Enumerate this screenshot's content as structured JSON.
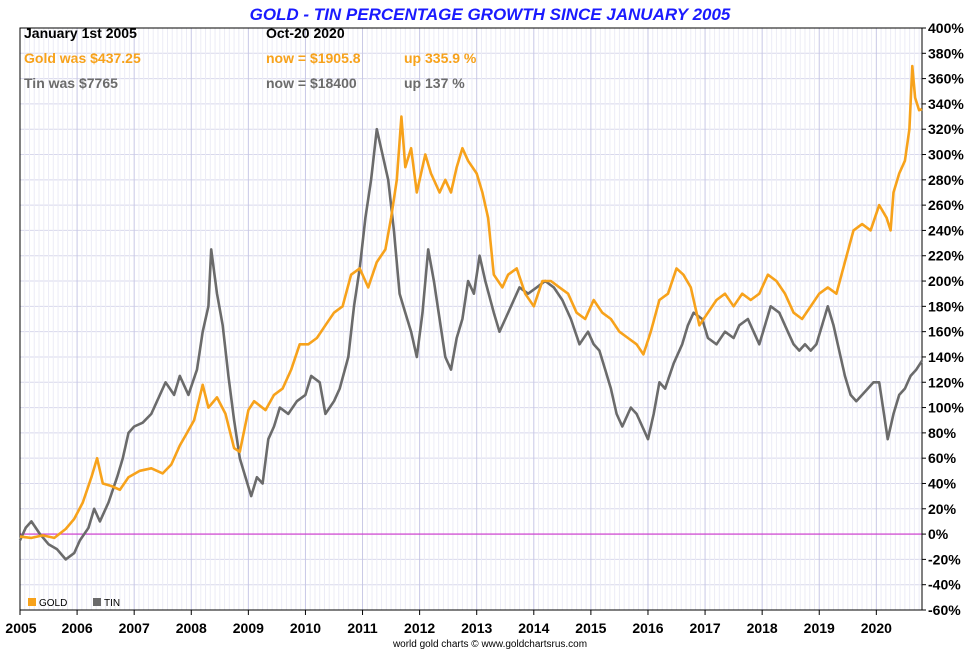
{
  "chart_data": {
    "type": "line",
    "title": "GOLD - TIN PERCENTAGE GROWTH SINCE JANUARY 2005",
    "header": {
      "start_label": "January 1st 2005",
      "end_label": "Oct-20  2020",
      "gold_was": "Gold was $437.25",
      "gold_now": "now = $1905.8",
      "gold_up": "up 335.9 %",
      "tin_was": "Tin was $7765",
      "tin_now": "now = $18400",
      "tin_up": "up 137 %"
    },
    "ylim": [
      -60,
      400
    ],
    "yticks": [
      "400%",
      "380%",
      "360%",
      "340%",
      "320%",
      "300%",
      "280%",
      "260%",
      "240%",
      "220%",
      "200%",
      "180%",
      "160%",
      "140%",
      "120%",
      "100%",
      "80%",
      "60%",
      "40%",
      "20%",
      "0%",
      "-20%",
      "-40%",
      "-60%"
    ],
    "xlim": [
      2005,
      2020.8
    ],
    "xticks": [
      "2005",
      "2006",
      "2007",
      "2008",
      "2009",
      "2010",
      "2011",
      "2012",
      "2013",
      "2014",
      "2015",
      "2016",
      "2017",
      "2018",
      "2019",
      "2020"
    ],
    "grid": true,
    "zero_line": true,
    "legend_placement": "bottom-left",
    "series": [
      {
        "name": "GOLD",
        "color": "#f7a21b",
        "points": [
          [
            2005.0,
            -2
          ],
          [
            2005.2,
            -3
          ],
          [
            2005.4,
            -1
          ],
          [
            2005.6,
            -3
          ],
          [
            2005.8,
            4
          ],
          [
            2005.95,
            12
          ],
          [
            2006.1,
            25
          ],
          [
            2006.25,
            45
          ],
          [
            2006.35,
            60
          ],
          [
            2006.45,
            40
          ],
          [
            2006.6,
            38
          ],
          [
            2006.75,
            35
          ],
          [
            2006.9,
            45
          ],
          [
            2007.1,
            50
          ],
          [
            2007.3,
            52
          ],
          [
            2007.5,
            48
          ],
          [
            2007.65,
            55
          ],
          [
            2007.8,
            70
          ],
          [
            2007.9,
            78
          ],
          [
            2008.05,
            90
          ],
          [
            2008.2,
            118
          ],
          [
            2008.3,
            100
          ],
          [
            2008.45,
            108
          ],
          [
            2008.6,
            95
          ],
          [
            2008.75,
            68
          ],
          [
            2008.85,
            65
          ],
          [
            2009.0,
            98
          ],
          [
            2009.1,
            105
          ],
          [
            2009.3,
            98
          ],
          [
            2009.45,
            110
          ],
          [
            2009.6,
            115
          ],
          [
            2009.75,
            130
          ],
          [
            2009.9,
            150
          ],
          [
            2010.05,
            150
          ],
          [
            2010.2,
            155
          ],
          [
            2010.35,
            165
          ],
          [
            2010.5,
            175
          ],
          [
            2010.65,
            180
          ],
          [
            2010.8,
            205
          ],
          [
            2010.95,
            210
          ],
          [
            2011.1,
            195
          ],
          [
            2011.25,
            215
          ],
          [
            2011.4,
            225
          ],
          [
            2011.5,
            250
          ],
          [
            2011.6,
            280
          ],
          [
            2011.68,
            330
          ],
          [
            2011.75,
            290
          ],
          [
            2011.85,
            305
          ],
          [
            2011.95,
            270
          ],
          [
            2012.1,
            300
          ],
          [
            2012.2,
            285
          ],
          [
            2012.35,
            270
          ],
          [
            2012.45,
            280
          ],
          [
            2012.55,
            270
          ],
          [
            2012.65,
            290
          ],
          [
            2012.75,
            305
          ],
          [
            2012.85,
            295
          ],
          [
            2013.0,
            285
          ],
          [
            2013.1,
            270
          ],
          [
            2013.2,
            250
          ],
          [
            2013.3,
            205
          ],
          [
            2013.45,
            195
          ],
          [
            2013.55,
            205
          ],
          [
            2013.7,
            210
          ],
          [
            2013.85,
            190
          ],
          [
            2014.0,
            180
          ],
          [
            2014.15,
            200
          ],
          [
            2014.3,
            200
          ],
          [
            2014.45,
            195
          ],
          [
            2014.6,
            190
          ],
          [
            2014.75,
            175
          ],
          [
            2014.9,
            170
          ],
          [
            2015.05,
            185
          ],
          [
            2015.2,
            175
          ],
          [
            2015.35,
            170
          ],
          [
            2015.5,
            160
          ],
          [
            2015.65,
            155
          ],
          [
            2015.8,
            150
          ],
          [
            2015.92,
            142
          ],
          [
            2016.05,
            160
          ],
          [
            2016.2,
            185
          ],
          [
            2016.35,
            190
          ],
          [
            2016.5,
            210
          ],
          [
            2016.62,
            205
          ],
          [
            2016.75,
            195
          ],
          [
            2016.9,
            165
          ],
          [
            2017.05,
            175
          ],
          [
            2017.2,
            185
          ],
          [
            2017.35,
            190
          ],
          [
            2017.5,
            180
          ],
          [
            2017.65,
            190
          ],
          [
            2017.8,
            185
          ],
          [
            2017.95,
            190
          ],
          [
            2018.1,
            205
          ],
          [
            2018.25,
            200
          ],
          [
            2018.4,
            190
          ],
          [
            2018.55,
            175
          ],
          [
            2018.7,
            170
          ],
          [
            2018.85,
            180
          ],
          [
            2019.0,
            190
          ],
          [
            2019.15,
            195
          ],
          [
            2019.3,
            190
          ],
          [
            2019.45,
            215
          ],
          [
            2019.6,
            240
          ],
          [
            2019.75,
            245
          ],
          [
            2019.9,
            240
          ],
          [
            2020.05,
            260
          ],
          [
            2020.18,
            250
          ],
          [
            2020.25,
            240
          ],
          [
            2020.3,
            270
          ],
          [
            2020.4,
            285
          ],
          [
            2020.5,
            295
          ],
          [
            2020.58,
            320
          ],
          [
            2020.63,
            370
          ],
          [
            2020.68,
            345
          ],
          [
            2020.75,
            335
          ],
          [
            2020.8,
            335.9
          ]
        ]
      },
      {
        "name": "TIN",
        "color": "#6b6b6b",
        "points": [
          [
            2005.0,
            -5
          ],
          [
            2005.1,
            5
          ],
          [
            2005.2,
            10
          ],
          [
            2005.35,
            0
          ],
          [
            2005.5,
            -8
          ],
          [
            2005.65,
            -12
          ],
          [
            2005.8,
            -20
          ],
          [
            2005.95,
            -15
          ],
          [
            2006.05,
            -5
          ],
          [
            2006.2,
            5
          ],
          [
            2006.3,
            20
          ],
          [
            2006.4,
            10
          ],
          [
            2006.55,
            25
          ],
          [
            2006.7,
            45
          ],
          [
            2006.8,
            60
          ],
          [
            2006.9,
            80
          ],
          [
            2007.0,
            85
          ],
          [
            2007.15,
            88
          ],
          [
            2007.3,
            95
          ],
          [
            2007.45,
            110
          ],
          [
            2007.55,
            120
          ],
          [
            2007.7,
            110
          ],
          [
            2007.8,
            125
          ],
          [
            2007.95,
            110
          ],
          [
            2008.1,
            130
          ],
          [
            2008.2,
            160
          ],
          [
            2008.3,
            180
          ],
          [
            2008.35,
            225
          ],
          [
            2008.45,
            190
          ],
          [
            2008.55,
            165
          ],
          [
            2008.65,
            125
          ],
          [
            2008.75,
            90
          ],
          [
            2008.85,
            60
          ],
          [
            2008.95,
            45
          ],
          [
            2009.05,
            30
          ],
          [
            2009.15,
            45
          ],
          [
            2009.25,
            40
          ],
          [
            2009.35,
            75
          ],
          [
            2009.45,
            85
          ],
          [
            2009.55,
            100
          ],
          [
            2009.7,
            95
          ],
          [
            2009.85,
            105
          ],
          [
            2010.0,
            110
          ],
          [
            2010.1,
            125
          ],
          [
            2010.25,
            120
          ],
          [
            2010.35,
            95
          ],
          [
            2010.5,
            105
          ],
          [
            2010.6,
            115
          ],
          [
            2010.75,
            140
          ],
          [
            2010.85,
            180
          ],
          [
            2010.95,
            210
          ],
          [
            2011.05,
            250
          ],
          [
            2011.15,
            280
          ],
          [
            2011.25,
            320
          ],
          [
            2011.35,
            300
          ],
          [
            2011.45,
            280
          ],
          [
            2011.55,
            240
          ],
          [
            2011.65,
            190
          ],
          [
            2011.75,
            175
          ],
          [
            2011.85,
            160
          ],
          [
            2011.95,
            140
          ],
          [
            2012.05,
            175
          ],
          [
            2012.15,
            225
          ],
          [
            2012.25,
            200
          ],
          [
            2012.35,
            170
          ],
          [
            2012.45,
            140
          ],
          [
            2012.55,
            130
          ],
          [
            2012.65,
            155
          ],
          [
            2012.75,
            170
          ],
          [
            2012.85,
            200
          ],
          [
            2012.95,
            190
          ],
          [
            2013.05,
            220
          ],
          [
            2013.15,
            200
          ],
          [
            2013.3,
            175
          ],
          [
            2013.4,
            160
          ],
          [
            2013.5,
            170
          ],
          [
            2013.6,
            180
          ],
          [
            2013.75,
            195
          ],
          [
            2013.9,
            190
          ],
          [
            2014.05,
            195
          ],
          [
            2014.2,
            200
          ],
          [
            2014.35,
            195
          ],
          [
            2014.5,
            185
          ],
          [
            2014.65,
            170
          ],
          [
            2014.8,
            150
          ],
          [
            2014.95,
            160
          ],
          [
            2015.05,
            150
          ],
          [
            2015.15,
            145
          ],
          [
            2015.25,
            130
          ],
          [
            2015.35,
            115
          ],
          [
            2015.45,
            95
          ],
          [
            2015.55,
            85
          ],
          [
            2015.7,
            100
          ],
          [
            2015.8,
            95
          ],
          [
            2015.9,
            85
          ],
          [
            2016.0,
            75
          ],
          [
            2016.1,
            95
          ],
          [
            2016.2,
            120
          ],
          [
            2016.3,
            115
          ],
          [
            2016.45,
            135
          ],
          [
            2016.6,
            150
          ],
          [
            2016.7,
            165
          ],
          [
            2016.8,
            175
          ],
          [
            2016.95,
            170
          ],
          [
            2017.05,
            155
          ],
          [
            2017.2,
            150
          ],
          [
            2017.35,
            160
          ],
          [
            2017.5,
            155
          ],
          [
            2017.6,
            165
          ],
          [
            2017.75,
            170
          ],
          [
            2017.85,
            160
          ],
          [
            2017.95,
            150
          ],
          [
            2018.05,
            165
          ],
          [
            2018.15,
            180
          ],
          [
            2018.3,
            175
          ],
          [
            2018.45,
            160
          ],
          [
            2018.55,
            150
          ],
          [
            2018.65,
            145
          ],
          [
            2018.75,
            150
          ],
          [
            2018.85,
            145
          ],
          [
            2018.95,
            150
          ],
          [
            2019.05,
            165
          ],
          [
            2019.15,
            180
          ],
          [
            2019.25,
            165
          ],
          [
            2019.35,
            145
          ],
          [
            2019.45,
            125
          ],
          [
            2019.55,
            110
          ],
          [
            2019.65,
            105
          ],
          [
            2019.75,
            110
          ],
          [
            2019.85,
            115
          ],
          [
            2019.95,
            120
          ],
          [
            2020.05,
            120
          ],
          [
            2020.15,
            90
          ],
          [
            2020.2,
            75
          ],
          [
            2020.3,
            95
          ],
          [
            2020.4,
            110
          ],
          [
            2020.5,
            115
          ],
          [
            2020.6,
            125
          ],
          [
            2020.7,
            130
          ],
          [
            2020.8,
            137
          ]
        ]
      }
    ],
    "legend": [
      {
        "label": "GOLD",
        "color": "#f7a21b"
      },
      {
        "label": "TIN",
        "color": "#6b6b6b"
      }
    ],
    "credit": "world gold charts © www.goldchartsrus.com"
  }
}
